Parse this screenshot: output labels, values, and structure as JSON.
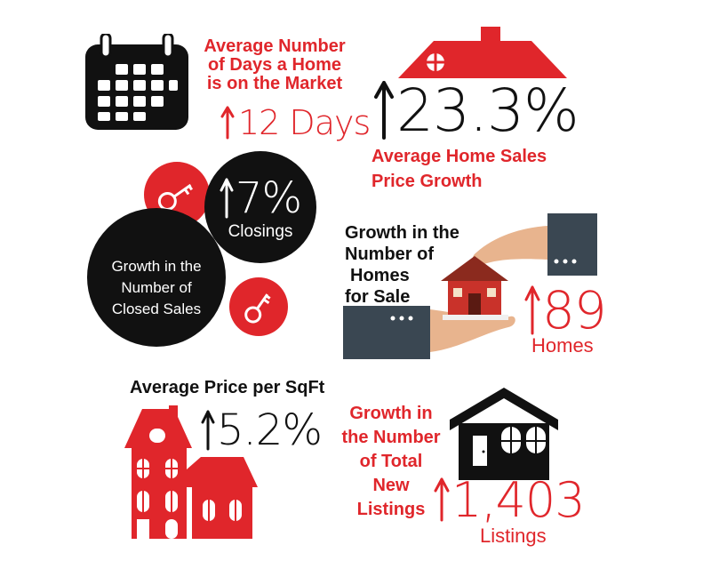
{
  "days_on_market": {
    "title": [
      "Average Number",
      "of Days a Home",
      "is on the Market"
    ],
    "value": "12 Days",
    "arrow": "up-arrow"
  },
  "sales_price": {
    "value": "23.3%",
    "label_line1": "Average Home Sales",
    "label_line2": "Price Growth",
    "arrow": "up-arrow"
  },
  "closed_sales": {
    "value": "7%",
    "value_label": "Closings",
    "title": [
      "Growth in the",
      "Number of",
      "Closed Sales"
    ],
    "arrow": "up-arrow"
  },
  "homes_for_sale": {
    "title": [
      "Growth in the",
      "Number of",
      "Homes",
      "for Sale"
    ],
    "value": "89",
    "unit": "Homes",
    "arrow": "up-arrow"
  },
  "price_sqft": {
    "title": "Average Price per SqFt",
    "value": "5.2%",
    "arrow": "up-arrow"
  },
  "new_listings": {
    "title": [
      "Growth in",
      "the Number",
      "of Total",
      "New",
      "Listings"
    ],
    "value": "1,403",
    "unit": "Listings",
    "arrow": "up-arrow"
  },
  "colors": {
    "accent": "#e0262b",
    "dark": "#111111",
    "sleeve": "#3a4752",
    "skin": "#e8b48e"
  },
  "icons": [
    "calendar-icon",
    "house-roof-icon",
    "key-icon",
    "hands-house-icon",
    "red-house-icon",
    "black-house-icon"
  ]
}
